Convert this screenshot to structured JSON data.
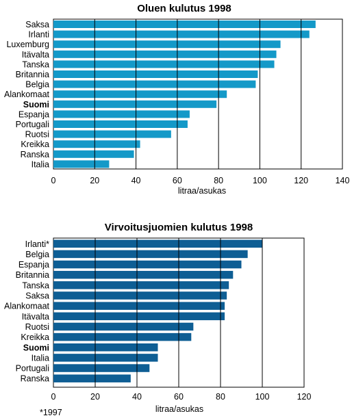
{
  "chart_data": [
    {
      "type": "bar",
      "orientation": "horizontal",
      "title": "Oluen kulutus 1998",
      "xlabel": "litraa/asukas",
      "ylabel": "",
      "xlim": [
        0,
        140
      ],
      "xticks": [
        0,
        20,
        40,
        60,
        80,
        100,
        120,
        140
      ],
      "grid": "vertical",
      "bar_color": "#1499c8",
      "highlight": "Suomi",
      "categories": [
        "Saksa",
        "Irlanti",
        "Luxemburg",
        "Itävalta",
        "Tanska",
        "Britannia",
        "Belgia",
        "Alankomaat",
        "Suomi",
        "Espanja",
        "Portugali",
        "Ruotsi",
        "Kreikka",
        "Ranska",
        "Italia"
      ],
      "values": [
        127,
        124,
        110,
        108,
        107,
        99,
        98,
        84,
        79,
        66,
        65,
        57,
        42,
        39,
        27
      ]
    },
    {
      "type": "bar",
      "orientation": "horizontal",
      "title": "Virvoitusjuomien kulutus 1998",
      "xlabel": "litraa/asukas",
      "ylabel": "",
      "xlim": [
        0,
        120
      ],
      "xticks": [
        0,
        20,
        40,
        60,
        80,
        100,
        120
      ],
      "grid": "vertical",
      "bar_color": "#0e5e94",
      "highlight": "Suomi",
      "categories": [
        "Irlanti*",
        "Belgia",
        "Espanja",
        "Britannia",
        "Tanska",
        "Saksa",
        "Alankomaat",
        "Itävalta",
        "Ruotsi",
        "Kreikka",
        "Suomi",
        "Italia",
        "Portugali",
        "Ranska"
      ],
      "values": [
        100,
        93,
        90,
        86,
        84,
        83,
        82,
        82,
        67,
        66,
        50,
        50,
        46,
        37
      ],
      "footnote": "*1997"
    }
  ]
}
